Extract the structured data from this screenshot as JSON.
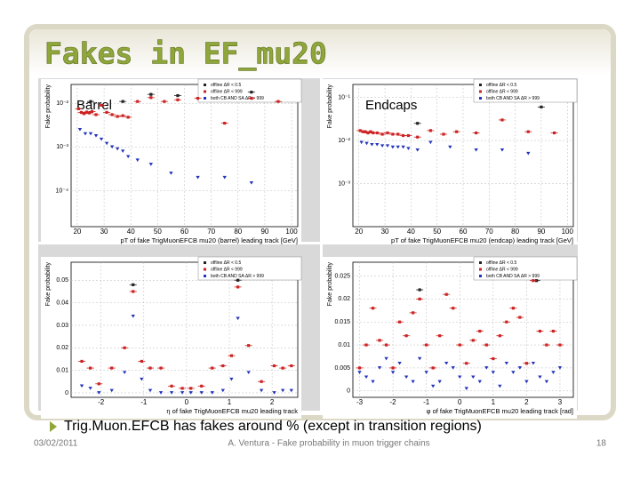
{
  "title": "Fakes in EF_mu20",
  "panels": [
    {
      "label": "Barrel",
      "ylabel": "Fake probability",
      "xlabel": "pT of fake TrigMuonEFCB mu20 (barrel) leading track [GeV]",
      "log": true,
      "xlim": [
        17.7,
        102.3
      ],
      "ylim": [
        1.5e-05,
        0.027
      ],
      "xticks": [
        20,
        30,
        40,
        50,
        60,
        70,
        80,
        90,
        100
      ],
      "yticks": [
        {
          "value": 0.01,
          "label": "10⁻²"
        },
        {
          "value": 0.001,
          "label": "10⁻³"
        },
        {
          "value": 0.0001,
          "label": "10⁻⁴"
        }
      ],
      "series": [
        {
          "name": "offline ΔR < 0.5",
          "color": "#222222",
          "x": [
            25,
            37,
            47.5,
            57.5,
            85
          ],
          "y": [
            0.011,
            0.011,
            0.016,
            0.015,
            0.018
          ]
        },
        {
          "name": "offline ΔR < 999",
          "color": "#cc2222",
          "x": [
            20.5,
            21.5,
            22.5,
            23.5,
            24.5,
            25.5,
            27,
            29,
            31,
            33,
            35,
            37,
            39,
            42.5,
            47.5,
            52.5,
            57.5,
            65,
            75,
            85,
            95
          ],
          "y": [
            0.0075,
            0.0062,
            0.0058,
            0.0063,
            0.006,
            0.0065,
            0.0055,
            0.009,
            0.0062,
            0.0055,
            0.005,
            0.0052,
            0.0048,
            0.011,
            0.0135,
            0.011,
            0.012,
            0.013,
            0.0035,
            0.013,
            0.011
          ]
        },
        {
          "name": "both CB AND SA ΔR > 999",
          "color": "#2233bb",
          "x": [
            21,
            23,
            25,
            27,
            29,
            31,
            33,
            35,
            37,
            39,
            42.5,
            47.5,
            55,
            65,
            75,
            85
          ],
          "y": [
            0.0025,
            0.002,
            0.002,
            0.0018,
            0.0015,
            0.0012,
            0.001,
            0.0009,
            0.0008,
            0.0006,
            0.0005,
            0.0004,
            0.00025,
            0.0002,
            0.0002,
            0.00015
          ]
        }
      ]
    },
    {
      "label": "Endcaps",
      "ylabel": "Fake probability",
      "xlabel": "pT of fake TrigMuonEFCB mu20 (endcap) leading track [GeV]",
      "log": true,
      "xlim": [
        17.7,
        102.3
      ],
      "ylim": [
        0.0001,
        0.2
      ],
      "xticks": [
        20,
        30,
        40,
        50,
        60,
        70,
        80,
        90,
        100
      ],
      "yticks": [
        {
          "value": 0.1,
          "label": "10⁻¹"
        },
        {
          "value": 0.01,
          "label": "10⁻²"
        },
        {
          "value": 0.001,
          "label": "10⁻³"
        }
      ],
      "series": [
        {
          "name": "offline ΔR < 0.5",
          "color": "#222222",
          "x": [
            42.5,
            90
          ],
          "y": [
            0.025,
            0.06
          ]
        },
        {
          "name": "offline ΔR < 999",
          "color": "#cc2222",
          "x": [
            20.5,
            21.5,
            22.5,
            23.5,
            24.5,
            25.5,
            27,
            29,
            31,
            33,
            35,
            37,
            39,
            42.5,
            47.5,
            52.5,
            57.5,
            65,
            75,
            85,
            95
          ],
          "y": [
            0.017,
            0.016,
            0.016,
            0.015,
            0.016,
            0.015,
            0.015,
            0.014,
            0.015,
            0.014,
            0.014,
            0.013,
            0.013,
            0.012,
            0.017,
            0.014,
            0.016,
            0.015,
            0.03,
            0.016,
            0.015
          ]
        },
        {
          "name": "both CB AND SA ΔR > 999",
          "color": "#2233bb",
          "x": [
            21,
            23,
            25,
            27,
            29,
            31,
            33,
            35,
            37,
            39,
            42.5,
            47.5,
            55,
            65,
            75,
            85
          ],
          "y": [
            0.009,
            0.0085,
            0.008,
            0.008,
            0.0075,
            0.0075,
            0.007,
            0.007,
            0.007,
            0.0065,
            0.006,
            0.009,
            0.007,
            0.006,
            0.006,
            0.005
          ]
        }
      ]
    },
    {
      "ylabel": "Fake probability",
      "xlabel": "η of fake TrigMuonEFCB mu20 leading track",
      "log": false,
      "xlim": [
        -2.7,
        2.6
      ],
      "ylim": [
        -0.002,
        0.058
      ],
      "xticks": [
        -2,
        -1,
        0,
        1,
        2
      ],
      "yticks": [
        0,
        0.01,
        0.02,
        0.03,
        0.04,
        0.05
      ],
      "series": [
        {
          "name": "offline ΔR < 0.5",
          "color": "#222222",
          "x": [
            -1.25,
            1.2
          ],
          "y": [
            0.048,
            0.05
          ]
        },
        {
          "name": "offline ΔR < 999",
          "color": "#cc2222",
          "x": [
            -2.45,
            -2.25,
            -2.05,
            -1.75,
            -1.45,
            -1.25,
            -1.05,
            -0.85,
            -0.6,
            -0.35,
            -0.1,
            0.1,
            0.35,
            0.6,
            0.85,
            1.05,
            1.2,
            1.45,
            1.75,
            2.05,
            2.25,
            2.45
          ],
          "y": [
            0.014,
            0.011,
            0.004,
            0.011,
            0.02,
            0.045,
            0.014,
            0.011,
            0.011,
            0.003,
            0.002,
            0.002,
            0.003,
            0.011,
            0.012,
            0.0165,
            0.047,
            0.021,
            0.005,
            0.012,
            0.011,
            0.012
          ]
        },
        {
          "name": "both CB AND SA ΔR > 999",
          "color": "#2233bb",
          "x": [
            -2.45,
            -2.25,
            -2.05,
            -1.75,
            -1.45,
            -1.25,
            -1.05,
            -0.85,
            -0.6,
            -0.35,
            -0.1,
            0.1,
            0.35,
            0.6,
            0.85,
            1.05,
            1.2,
            1.45,
            1.75,
            2.05,
            2.25,
            2.45
          ],
          "y": [
            0.003,
            0.002,
            0,
            0.001,
            0.009,
            0.034,
            0.006,
            0.001,
            0,
            0,
            0,
            0,
            0,
            0,
            0.001,
            0.006,
            0.033,
            0.009,
            0.001,
            0,
            0.001,
            0.001
          ]
        }
      ]
    },
    {
      "ylabel": "Fake probability",
      "xlabel": "φ of fake TrigMuonEFCB mu20 leading track [rad]",
      "log": false,
      "xlim": [
        -3.2,
        3.4
      ],
      "ylim": [
        -0.0014,
        0.028
      ],
      "xticks": [
        -3,
        -2,
        -1,
        0,
        1,
        2,
        3
      ],
      "yticks": [
        0,
        0.005,
        0.01,
        0.015,
        0.02,
        0.025
      ],
      "series": [
        {
          "name": "offline ΔR < 0.5",
          "color": "#222222",
          "x": [
            -1.2,
            2.3
          ],
          "y": [
            0.022,
            0.024
          ]
        },
        {
          "name": "offline ΔR < 999",
          "color": "#cc2222",
          "x": [
            -3,
            -2.8,
            -2.6,
            -2.4,
            -2.2,
            -2,
            -1.8,
            -1.6,
            -1.4,
            -1.2,
            -1,
            -0.8,
            -0.6,
            -0.4,
            -0.2,
            0,
            0.2,
            0.4,
            0.6,
            0.8,
            1,
            1.2,
            1.4,
            1.6,
            1.8,
            2,
            2.2,
            2.4,
            2.6,
            2.8,
            3
          ],
          "y": [
            0.005,
            0.01,
            0.018,
            0.011,
            0.01,
            0.005,
            0.015,
            0.012,
            0.017,
            0.02,
            0.01,
            0.005,
            0.012,
            0.021,
            0.018,
            0.01,
            0.006,
            0.011,
            0.013,
            0.01,
            0.007,
            0.012,
            0.015,
            0.018,
            0.016,
            0.006,
            0.024,
            0.013,
            0.01,
            0.013,
            0.01
          ]
        },
        {
          "name": "both CB AND SA ΔR > 999",
          "color": "#2233bb",
          "x": [
            -3,
            -2.8,
            -2.6,
            -2.4,
            -2.2,
            -2,
            -1.8,
            -1.6,
            -1.4,
            -1.2,
            -1,
            -0.8,
            -0.6,
            -0.4,
            -0.2,
            0,
            0.2,
            0.4,
            0.6,
            0.8,
            1,
            1.2,
            1.4,
            1.6,
            1.8,
            2,
            2.2,
            2.4,
            2.6,
            2.8,
            3
          ],
          "y": [
            0.004,
            0.003,
            0.002,
            0.005,
            0.007,
            0.004,
            0.006,
            0.003,
            0.002,
            0.007,
            0.004,
            0.001,
            0.002,
            0.006,
            0.005,
            0.003,
            0.0005,
            0.003,
            0.002,
            0.005,
            0.004,
            0.001,
            0.006,
            0.004,
            0.005,
            0.002,
            0.006,
            0.003,
            0.002,
            0.004,
            0.005
          ]
        }
      ]
    }
  ],
  "bullet": "Trig.Muon.EFCB has fakes around % (except in transition regions)",
  "footer": {
    "date": "03/02/2011",
    "center": "A. Ventura - Fake probability in muon trigger chains",
    "page": "18"
  }
}
